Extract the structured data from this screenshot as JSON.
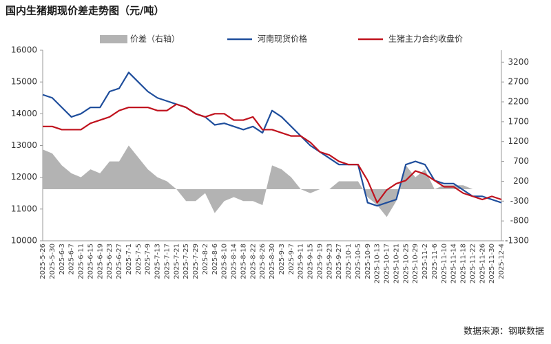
{
  "chart_data": {
    "type": "line",
    "title": "国内生猪期现价差走势图（元/吨）",
    "source": "数据来源：钢联数据",
    "categories": [
      "2025-5-26",
      "2025-5-30",
      "2025-6-3",
      "2025-6-7",
      "2025-6-11",
      "2025-6-15",
      "2025-6-19",
      "2025-6-23",
      "2025-6-27",
      "2025-7-1",
      "2025-7-5",
      "2025-7-9",
      "2025-7-13",
      "2025-7-17",
      "2025-7-21",
      "2025-7-25",
      "2025-7-29",
      "2025-8-2",
      "2025-8-6",
      "2025-8-10",
      "2025-8-14",
      "2025-8-18",
      "2025-8-22",
      "2025-8-26",
      "2025-8-30",
      "2025-9-3",
      "2025-9-7",
      "2025-9-11",
      "2025-9-15",
      "2025-9-19",
      "2025-9-23",
      "2025-9-27",
      "2025-10-1",
      "2025-10-5",
      "2025-10-9",
      "2025-10-13",
      "2025-10-17",
      "2025-10-21",
      "2025-10-25",
      "2025-10-29",
      "2025-11-2",
      "2025-11-6",
      "2025-11-10",
      "2025-11-14",
      "2025-11-18",
      "2025-11-22",
      "2025-11-26",
      "2025-11-30",
      "2025-12-4"
    ],
    "series": [
      {
        "name": "价差（右轴）",
        "type": "area",
        "axis": "y2",
        "color": "#b3b3b3",
        "values": [
          1000,
          900,
          600,
          400,
          300,
          500,
          400,
          700,
          700,
          1100,
          800,
          500,
          300,
          200,
          0,
          -300,
          -300,
          -100,
          -600,
          -300,
          -200,
          -300,
          -300,
          -400,
          600,
          500,
          300,
          0,
          -100,
          0,
          0,
          200,
          200,
          200,
          -200,
          -400,
          -700,
          -300,
          600,
          300,
          500,
          0,
          100,
          100,
          100,
          0,
          0,
          0,
          0
        ]
      },
      {
        "name": "河南现货价格",
        "type": "line",
        "color": "#1f4e9c",
        "values": [
          14600,
          14500,
          14200,
          13900,
          14000,
          14200,
          14200,
          14700,
          14800,
          15300,
          15000,
          14700,
          14500,
          14400,
          14300,
          14200,
          14000,
          13900,
          13650,
          13700,
          13600,
          13500,
          13600,
          13400,
          14100,
          13900,
          13600,
          13300,
          13000,
          12800,
          12600,
          12400,
          12400,
          12400,
          11200,
          11100,
          11200,
          11300,
          12400,
          12500,
          12400,
          11900,
          11800,
          11800,
          11600,
          11400,
          11400,
          11300,
          11200
        ]
      },
      {
        "name": "生猪主力合约收盘价",
        "type": "line",
        "color": "#c0121d",
        "values": [
          13600,
          13600,
          13500,
          13500,
          13500,
          13700,
          13800,
          13900,
          14100,
          14200,
          14200,
          14200,
          14100,
          14100,
          14300,
          14200,
          14000,
          13900,
          14000,
          14000,
          13800,
          13800,
          13900,
          13500,
          13500,
          13400,
          13300,
          13300,
          13100,
          12800,
          12700,
          12500,
          12400,
          12400,
          11900,
          11200,
          11600,
          11800,
          11900,
          12200,
          12100,
          11900,
          11700,
          11700,
          11500,
          11400,
          11300,
          11400,
          11300
        ]
      }
    ],
    "ylim": [
      10000,
      16000
    ],
    "yticks": [
      10000,
      11000,
      12000,
      13000,
      14000,
      15000,
      16000
    ],
    "y2lim": [
      -1300,
      3500
    ],
    "y2ticks": [
      -1300,
      -800,
      -300,
      200,
      700,
      1200,
      1700,
      2200,
      2700,
      3200
    ]
  }
}
